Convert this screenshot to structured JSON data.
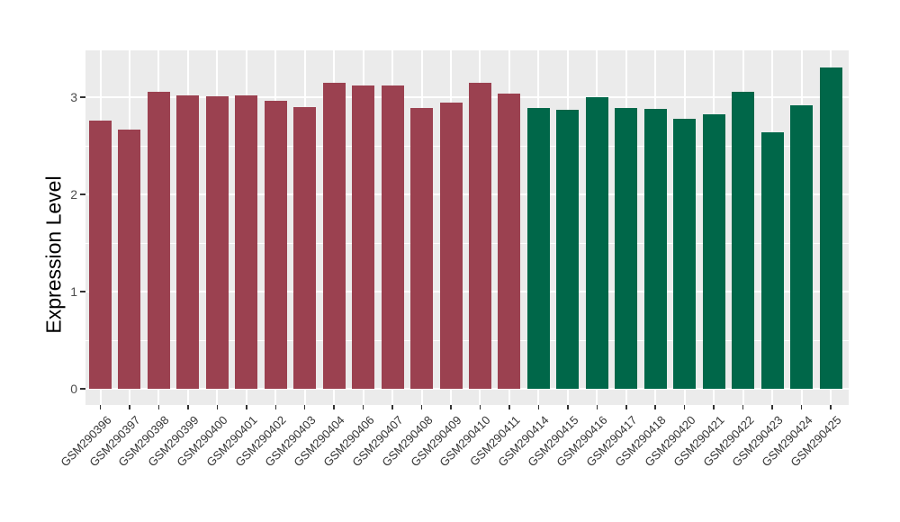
{
  "chart_data": {
    "type": "bar",
    "title": "",
    "xlabel": "",
    "ylabel": "Expression Level",
    "legend": "none",
    "grid": true,
    "panel_background": "#EBEBEB",
    "gridline_color": "#FFFFFF",
    "ylim": [
      0,
      3.48
    ],
    "yticks": [
      0,
      1,
      2,
      3
    ],
    "yticks_minor": [
      0.5,
      1.5,
      2.5
    ],
    "categories": [
      "GSM290396",
      "GSM290397",
      "GSM290398",
      "GSM290399",
      "GSM290400",
      "GSM290401",
      "GSM290402",
      "GSM290403",
      "GSM290404",
      "GSM290406",
      "GSM290407",
      "GSM290408",
      "GSM290409",
      "GSM290410",
      "GSM290411",
      "GSM290414",
      "GSM290415",
      "GSM290416",
      "GSM290417",
      "GSM290418",
      "GSM290420",
      "GSM290421",
      "GSM290422",
      "GSM290423",
      "GSM290424",
      "GSM290425"
    ],
    "values": [
      2.76,
      2.67,
      3.06,
      3.02,
      3.01,
      3.02,
      2.96,
      2.9,
      3.15,
      3.12,
      3.12,
      2.89,
      2.94,
      3.15,
      3.04,
      2.89,
      2.87,
      3.0,
      2.89,
      2.88,
      2.78,
      2.82,
      3.06,
      2.64,
      2.92,
      3.31
    ],
    "bar_groups": [
      "maroon",
      "maroon",
      "maroon",
      "maroon",
      "maroon",
      "maroon",
      "maroon",
      "maroon",
      "maroon",
      "maroon",
      "maroon",
      "maroon",
      "maroon",
      "maroon",
      "maroon",
      "green",
      "green",
      "green",
      "green",
      "green",
      "green",
      "green",
      "green",
      "green",
      "green",
      "green"
    ],
    "palette": {
      "maroon": "#9B4150",
      "green": "#006749"
    }
  }
}
